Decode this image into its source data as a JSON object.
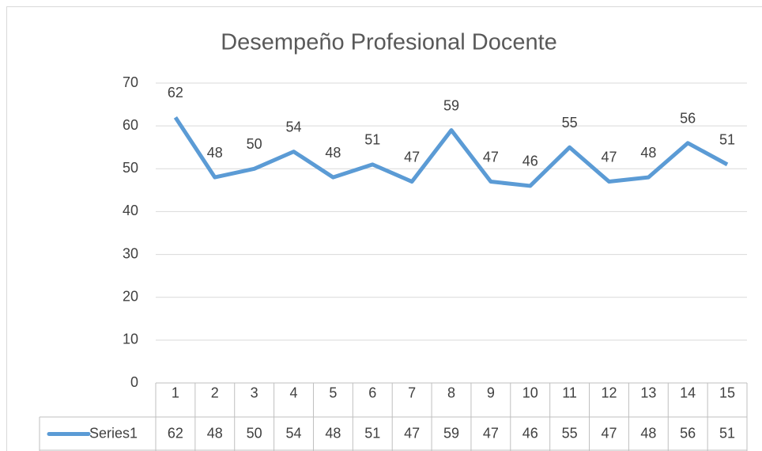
{
  "chart_data": {
    "type": "line",
    "title": "Desempeño Profesional Docente",
    "categories": [
      1,
      2,
      3,
      4,
      5,
      6,
      7,
      8,
      9,
      10,
      11,
      12,
      13,
      14,
      15
    ],
    "series": [
      {
        "name": "Series1",
        "color": "#5b9bd5",
        "values": [
          62,
          48,
          50,
          54,
          48,
          51,
          47,
          59,
          47,
          46,
          55,
          47,
          48,
          56,
          51
        ]
      }
    ],
    "ylim": [
      0,
      70
    ],
    "yticks": [
      0,
      10,
      20,
      30,
      40,
      50,
      60,
      70
    ],
    "grid": true,
    "data_table": true
  }
}
